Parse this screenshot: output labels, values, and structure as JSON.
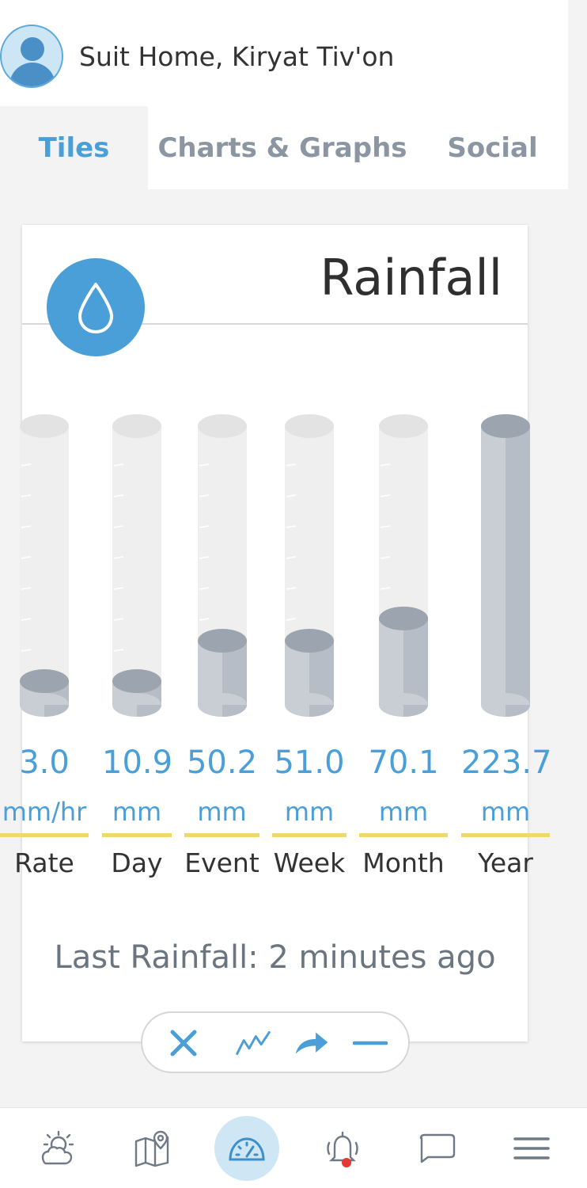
{
  "header": {
    "location": "Suit Home, Kiryat Tiv'on"
  },
  "tabs": [
    {
      "label": "Tiles",
      "active": true
    },
    {
      "label": "Charts & Graphs",
      "active": false
    },
    {
      "label": "Social",
      "active": false
    }
  ],
  "card": {
    "title": "Rainfall",
    "icon": "water-drop-icon",
    "gauges": [
      {
        "label": "Rate",
        "value": "3.0",
        "unit": "mm/hr",
        "fill": 0.05
      },
      {
        "label": "Day",
        "value": "10.9",
        "unit": "mm",
        "fill": 0.05
      },
      {
        "label": "Event",
        "value": "50.2",
        "unit": "mm",
        "fill": 0.23
      },
      {
        "label": "Week",
        "value": "51.0",
        "unit": "mm",
        "fill": 0.23
      },
      {
        "label": "Month",
        "value": "70.1",
        "unit": "mm",
        "fill": 0.31
      },
      {
        "label": "Year",
        "value": "223.7",
        "unit": "mm",
        "fill": 1.0
      }
    ],
    "last_rainfall": "Last Rainfall: 2 minutes ago"
  },
  "actions": [
    "close-icon",
    "chart-line-icon",
    "share-arrow-icon",
    "minimize-icon"
  ],
  "bottom_nav": [
    {
      "icon": "weather-icon",
      "active": false
    },
    {
      "icon": "map-icon",
      "active": false
    },
    {
      "icon": "dashboard-gauge-icon",
      "active": true
    },
    {
      "icon": "alert-bell-icon",
      "active": false,
      "badge": true
    },
    {
      "icon": "chat-icon",
      "active": false
    },
    {
      "icon": "menu-icon",
      "active": false
    }
  ],
  "colors": {
    "accent": "#4a9fd8",
    "underline": "#f0d86a",
    "cylinder_fill": "#b9c0c8"
  }
}
